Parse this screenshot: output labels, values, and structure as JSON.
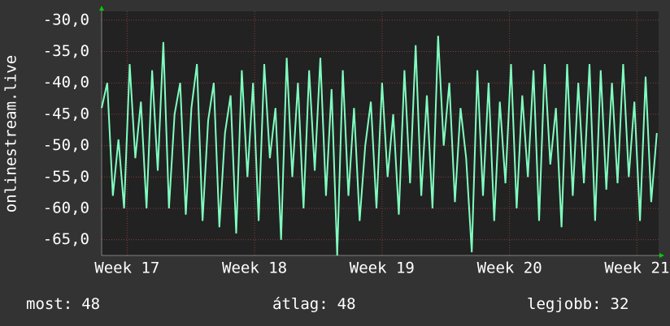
{
  "chart_data": {
    "type": "line",
    "y_label": "onlinestream.live",
    "x": [
      16.8,
      16.844,
      16.888,
      16.932,
      16.976,
      17.02,
      17.064,
      17.108,
      17.152,
      17.196,
      17.24,
      17.284,
      17.328,
      17.372,
      17.416,
      17.46,
      17.504,
      17.548,
      17.592,
      17.636,
      17.68,
      17.724,
      17.768,
      17.812,
      17.856,
      17.9,
      17.944,
      17.988,
      18.032,
      18.076,
      18.12,
      18.164,
      18.208,
      18.252,
      18.296,
      18.34,
      18.384,
      18.428,
      18.472,
      18.516,
      18.56,
      18.604,
      18.648,
      18.692,
      18.736,
      18.78,
      18.824,
      18.868,
      18.912,
      18.956,
      19.0,
      19.044,
      19.088,
      19.132,
      19.176,
      19.22,
      19.264,
      19.308,
      19.352,
      19.396,
      19.44,
      19.484,
      19.528,
      19.572,
      19.616,
      19.66,
      19.704,
      19.748,
      19.792,
      19.836,
      19.88,
      19.924,
      19.968,
      20.012,
      20.056,
      20.1,
      20.144,
      20.188,
      20.232,
      20.276,
      20.32,
      20.364,
      20.408,
      20.452,
      20.496,
      20.54,
      20.584,
      20.628,
      20.672,
      20.716,
      20.76,
      20.804,
      20.848,
      20.892,
      20.936,
      20.98,
      21.024,
      21.068,
      21.112,
      21.156
    ],
    "series": [
      {
        "color": "#80ffc0",
        "values": [
          -44,
          -40,
          -58,
          -49,
          -60,
          -37,
          -52,
          -43,
          -60,
          -38,
          -54,
          -33.5,
          -60,
          -45,
          -40,
          -61,
          -44,
          -37,
          -62,
          -46,
          -40,
          -63,
          -48,
          -42,
          -64,
          -38,
          -55,
          -40,
          -62,
          -37,
          -52,
          -44,
          -65,
          -36,
          -55,
          -40,
          -60,
          -38,
          -54,
          -36,
          -58,
          -41,
          -67.5,
          -38,
          -58,
          -44,
          -62,
          -50,
          -43,
          -60,
          -40,
          -55,
          -45,
          -61,
          -38,
          -56,
          -34,
          -58,
          -42,
          -60,
          -32.5,
          -50,
          -40,
          -59,
          -44,
          -52,
          -67,
          -38,
          -58,
          -40,
          -62,
          -43,
          -56,
          -37,
          -60,
          -42,
          -55,
          -38,
          -62,
          -37,
          -53,
          -44,
          -63,
          -37,
          -58,
          -40,
          -56,
          -37,
          -62,
          -38,
          -57,
          -40,
          -56,
          -37,
          -55,
          -43,
          -62,
          -39,
          -59,
          -48
        ]
      }
    ],
    "xlim": [
      16.8,
      21.17
    ],
    "xticks": [
      {
        "value": 17,
        "label": "Week 17"
      },
      {
        "value": 18,
        "label": "Week 18"
      },
      {
        "value": 19,
        "label": "Week 19"
      },
      {
        "value": 20,
        "label": "Week 20"
      },
      {
        "value": 21,
        "label": "Week 21"
      }
    ],
    "ylim": [
      -67.5,
      -28.6
    ],
    "yticks": [
      {
        "value": -30,
        "label": "-30,0"
      },
      {
        "value": -35,
        "label": "-35,0"
      },
      {
        "value": -40,
        "label": "-40,0"
      },
      {
        "value": -45,
        "label": "-45,0"
      },
      {
        "value": -50,
        "label": "-50,0"
      },
      {
        "value": -55,
        "label": "-55,0"
      },
      {
        "value": -60,
        "label": "-60,0"
      },
      {
        "value": -65,
        "label": "-65,0"
      }
    ],
    "grid": true,
    "stats": [
      {
        "label": "most:",
        "value": 48
      },
      {
        "label": "átlag:",
        "value": 48
      },
      {
        "label": "legjobb:",
        "value": 32
      }
    ]
  }
}
